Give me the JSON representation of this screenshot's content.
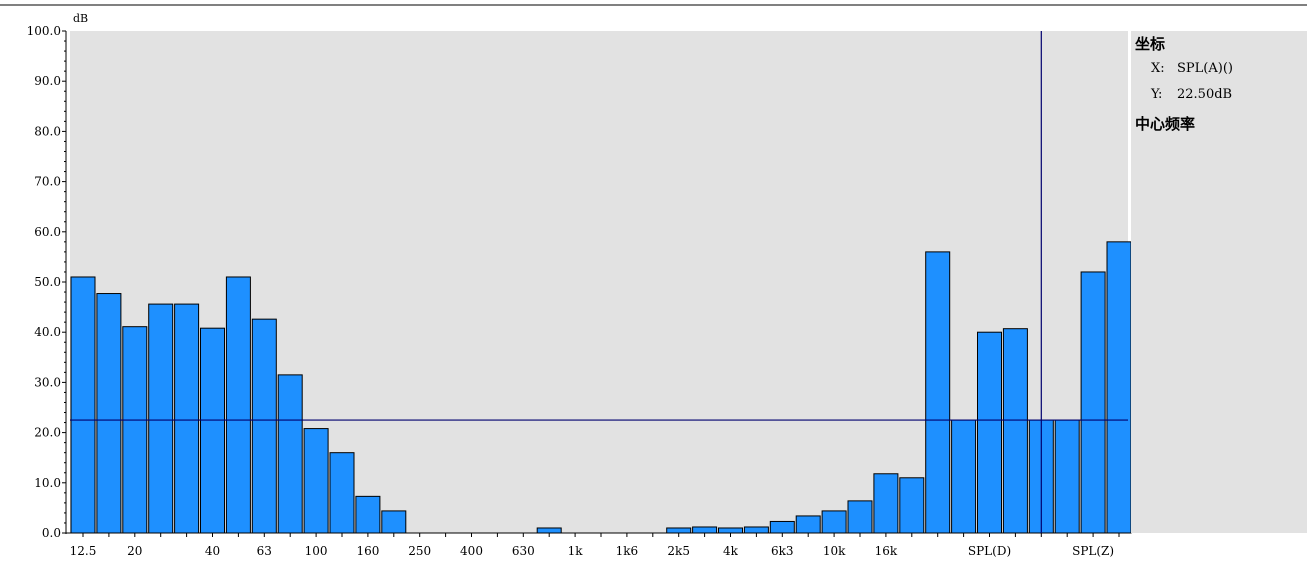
{
  "chart_data": {
    "type": "bar",
    "ylabel": "dB",
    "ylim": [
      0,
      100
    ],
    "ytick_labels": [
      "0.0",
      "10.0",
      "20.0",
      "30.0",
      "40.0",
      "50.0",
      "60.0",
      "70.0",
      "80.0",
      "90.0",
      "100.0"
    ],
    "xtick_labels": [
      {
        "label": "12.5",
        "index": 0
      },
      {
        "label": "20",
        "index": 2
      },
      {
        "label": "40",
        "index": 5
      },
      {
        "label": "63",
        "index": 7
      },
      {
        "label": "100",
        "index": 9
      },
      {
        "label": "160",
        "index": 11
      },
      {
        "label": "250",
        "index": 13
      },
      {
        "label": "400",
        "index": 15
      },
      {
        "label": "630",
        "index": 17
      },
      {
        "label": "1k",
        "index": 19
      },
      {
        "label": "1k6",
        "index": 21
      },
      {
        "label": "2k5",
        "index": 23
      },
      {
        "label": "4k",
        "index": 25
      },
      {
        "label": "6k3",
        "index": 27
      },
      {
        "label": "10k",
        "index": 29
      },
      {
        "label": "16k",
        "index": 31
      },
      {
        "label": "SPL(D)",
        "index": 35
      },
      {
        "label": "SPL(Z)",
        "index": 39
      }
    ],
    "values": [
      51,
      47.7,
      41.1,
      45.6,
      45.6,
      40.8,
      51,
      42.6,
      31.5,
      20.8,
      16,
      7.3,
      4.4,
      0,
      0,
      0,
      0,
      0,
      1,
      0,
      0,
      0,
      0,
      1,
      1.2,
      1,
      1.2,
      2.3,
      3.4,
      4.4,
      6.4,
      11.8,
      11,
      56,
      22.5,
      40,
      40.7,
      22.5,
      22.5,
      52,
      58
    ],
    "bar_color": "#1e90ff",
    "crosshair": {
      "index": 37,
      "y": 22.5
    },
    "grid": false
  },
  "panel": {
    "title": "坐标",
    "x_label": "X:",
    "x_value": "SPL(A)()",
    "y_label": "Y:",
    "y_value": "22.50dB",
    "subtitle": "中心频率"
  },
  "colors": {
    "plot_bg": "#e2e2e2",
    "bar": "#1e90ff",
    "crosshair": "#00006e"
  }
}
